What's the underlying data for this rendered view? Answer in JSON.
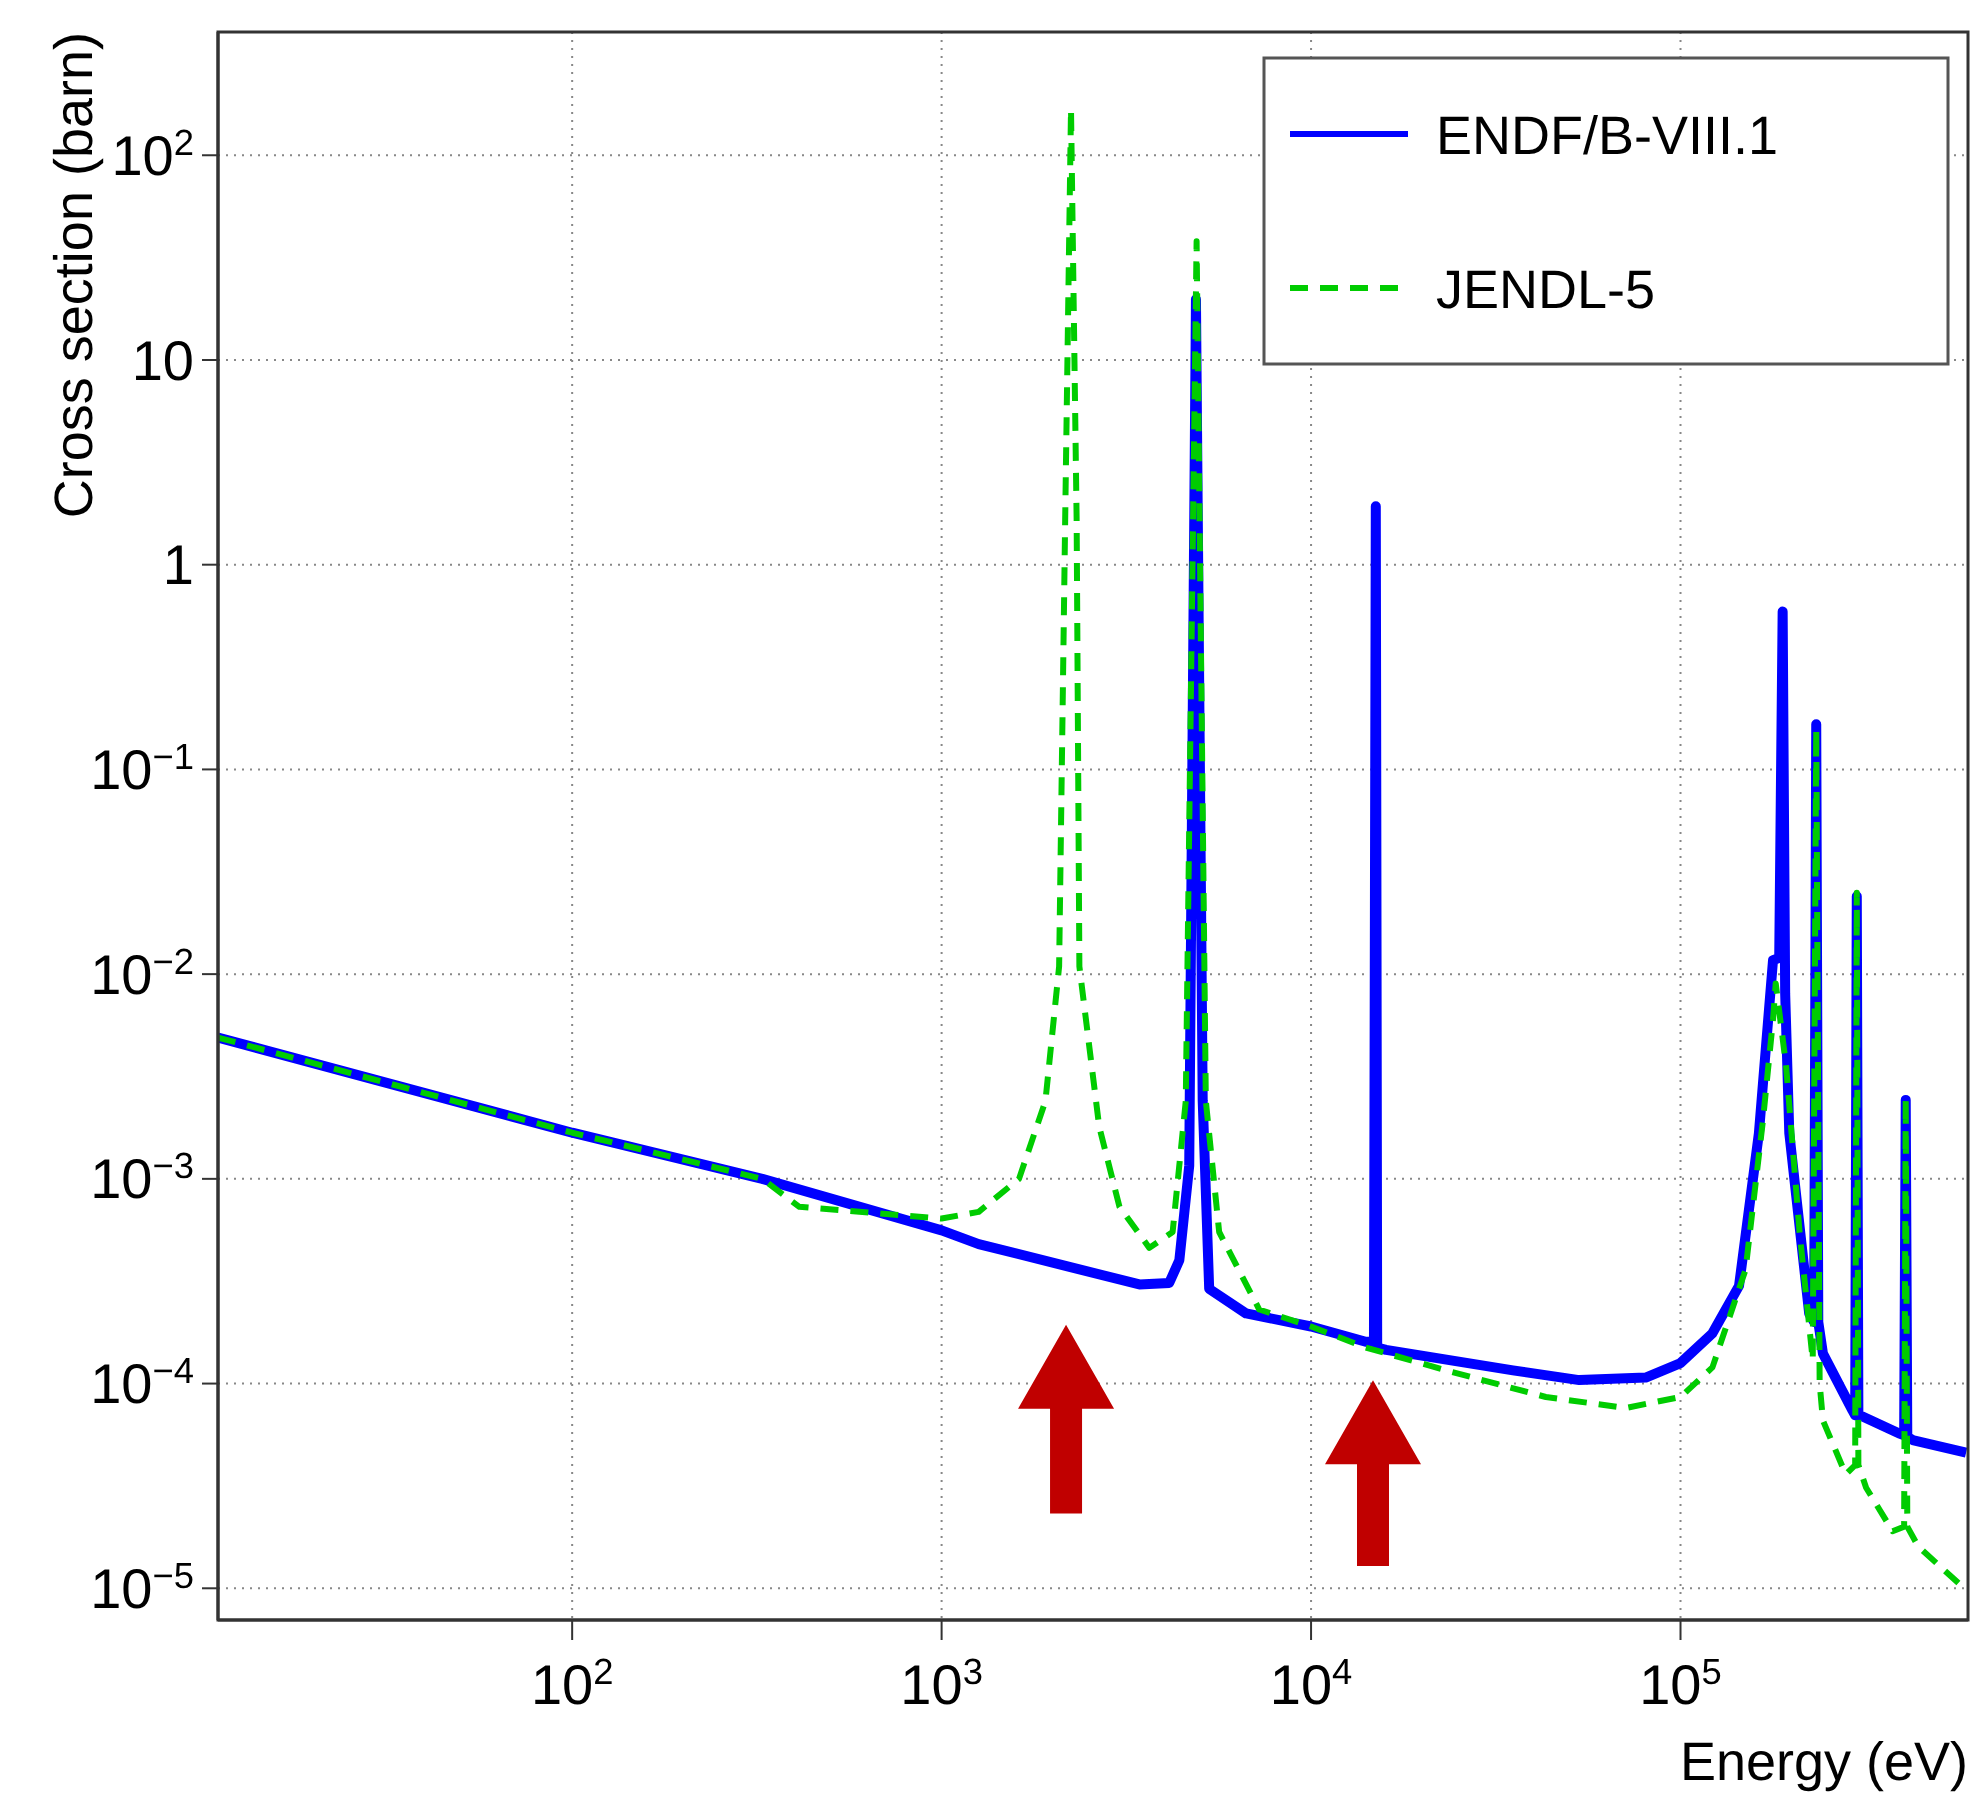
{
  "chart_data": {
    "type": "line",
    "xlabel": "Energy (eV)",
    "ylabel": "Cross section (barn)",
    "log": "xy",
    "grid": true,
    "legend": "top right",
    "xlim": [
      11,
      600000
    ],
    "ylim": [
      7e-06,
      400
    ],
    "xticks": [
      {
        "value": 100,
        "label": "10$^{2}$"
      },
      {
        "value": 1000,
        "label": "10$^{3}$"
      },
      {
        "value": 10000,
        "label": "10$^{4}$"
      },
      {
        "value": 100000,
        "label": "10$^{5}$"
      }
    ],
    "yticks": [
      {
        "value": 1e-05,
        "label": "10$^{−5}$"
      },
      {
        "value": 0.0001,
        "label": "10$^{−4}$"
      },
      {
        "value": 0.001,
        "label": "10$^{−3}$"
      },
      {
        "value": 0.01,
        "label": "10$^{−2}$"
      },
      {
        "value": 0.1,
        "label": "10$^{−1}$"
      },
      1,
      10,
      {
        "value": 100,
        "label": "10$^{2}$"
      }
    ],
    "series": [
      {
        "name": "ENDF/B-VIII.1",
        "color": "#0000ff",
        "line_style": "solid",
        "x": [
          11,
          100,
          327,
          1000,
          1260,
          3430,
          4130,
          4400,
          4680,
          4880,
          5090,
          5300,
          6670,
          10000,
          14060,
          14800,
          14970,
          15100,
          15960,
          35200,
          53200,
          80500,
          100000,
          122000,
          144000,
          163000,
          178000,
          185000,
          189000,
          192000,
          197000,
          223000,
          230000,
          233000,
          236000,
          243000,
          292000,
          297000,
          300000,
          303000,
          311000,
          391000,
          403000,
          407000,
          411000,
          425000,
          593000
        ],
        "values": [
          0.0049,
          0.00168,
          0.001,
          0.00056,
          0.00048,
          0.000305,
          0.00031,
          0.0004,
          0.00116,
          19.8,
          0.0024,
          0.00029,
          0.00022,
          0.00019,
          0.00016,
          0.00016,
          1.93,
          0.00015,
          0.000146,
          0.000116,
          0.000104,
          0.000107,
          0.000126,
          0.000176,
          0.0003,
          0.00167,
          0.0117,
          0.012,
          0.59,
          0.008,
          0.00167,
          0.00022,
          0.0002,
          0.166,
          0.0002,
          0.00014,
          7.4e-05,
          7e-05,
          0.024,
          7e-05,
          6.9e-05,
          5.7e-05,
          5.6e-05,
          0.00243,
          5.5e-05,
          5.3e-05,
          4.6e-05
        ]
      },
      {
        "name": "JENDL-5",
        "color": "#00cc00",
        "line_style": "dashed",
        "x": [
          11,
          100,
          327,
          412,
          1000,
          1260,
          1620,
          1910,
          2080,
          2160,
          2240,
          2320,
          2360,
          2670,
          3030,
          3650,
          4220,
          4580,
          4900,
          5190,
          5640,
          7240,
          10000,
          14060,
          23200,
          43200,
          71100,
          100000,
          122000,
          150000,
          167000,
          178000,
          181000,
          193000,
          210000,
          228000,
          233000,
          238000,
          243000,
          280000,
          297000,
          300000,
          303000,
          318000,
          375000,
          403000,
          407000,
          411000,
          440000,
          593000
        ],
        "values": [
          0.0049,
          0.00168,
          0.001,
          0.00073,
          0.00064,
          0.00069,
          0.001,
          0.0024,
          0.0109,
          1.66,
          168,
          1.66,
          0.0109,
          0.0018,
          0.00073,
          0.00046,
          0.00055,
          0.0024,
          38,
          0.0024,
          0.00055,
          0.00023,
          0.00019,
          0.00015,
          0.000116,
          8.6e-05,
          7.6e-05,
          8.6e-05,
          0.00012,
          0.00036,
          0.0019,
          0.006,
          0.009,
          0.0036,
          0.00055,
          0.00013,
          0.157,
          0.0001,
          6.6e-05,
          3.6e-05,
          4e-05,
          0.025,
          4e-05,
          3.1e-05,
          1.9e-05,
          2e-05,
          0.0025,
          2e-05,
          1.6e-05,
          9.8e-06
        ]
      }
    ]
  }
}
